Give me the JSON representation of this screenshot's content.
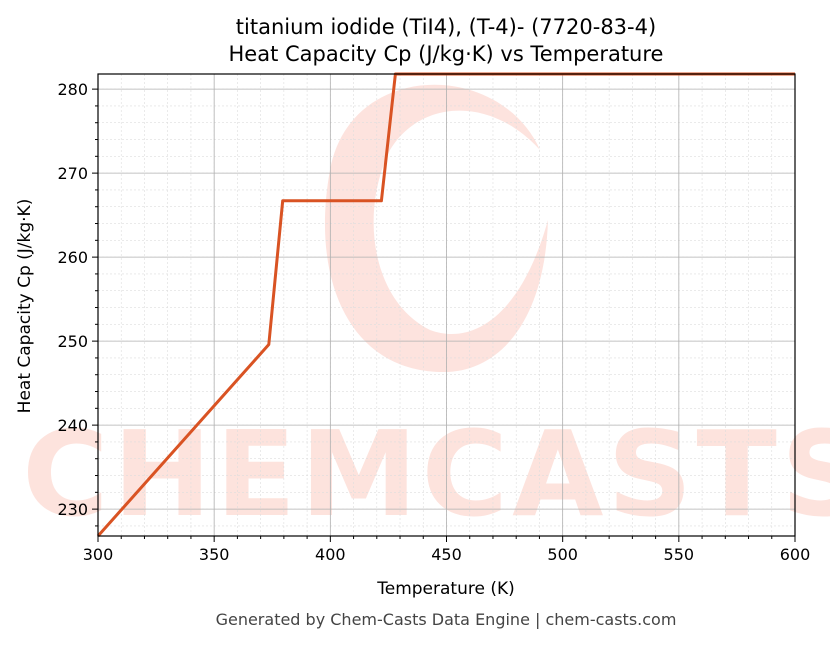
{
  "chart_data": {
    "type": "line",
    "title": "titanium iodide (TiI4), (T-4)- (7720-83-4)",
    "subtitle": "Heat Capacity Cp (J/kg·K) vs Temperature",
    "xlabel": "Temperature (K)",
    "ylabel": "Heat Capacity Cp (J/kg·K)",
    "xlim": [
      300,
      600
    ],
    "ylim": [
      226.8,
      281.8
    ],
    "x_ticks": [
      300,
      350,
      400,
      450,
      500,
      550,
      600
    ],
    "y_ticks": [
      230,
      240,
      250,
      260,
      270,
      280
    ],
    "grid": true,
    "legend": "none",
    "series": [
      {
        "color": "#d95323",
        "x": [
          300,
          373.5,
          379.5,
          422,
          428,
          600
        ],
        "y": [
          226.8,
          249.6,
          266.7,
          266.7,
          281.8,
          281.8
        ]
      }
    ]
  },
  "watermark": {
    "text": "CHEMCASTS",
    "color": "#fde0da"
  },
  "footer": "Generated by Chem-Casts Data Engine | chem-casts.com"
}
